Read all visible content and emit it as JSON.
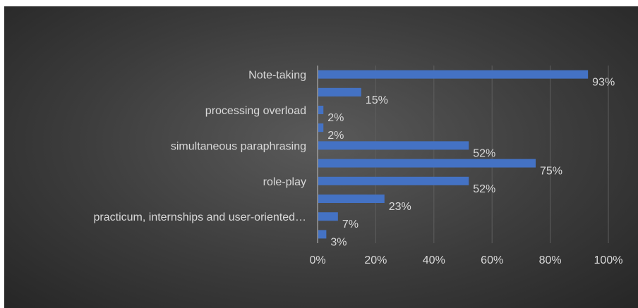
{
  "chart_data": {
    "type": "bar",
    "orientation": "horizontal",
    "title": "",
    "xlabel": "",
    "ylabel": "",
    "categories": [
      "Note-taking",
      "",
      "processing overload",
      "",
      "simultaneous paraphrasing",
      "",
      "role-play",
      "",
      "practicum, internships and user-oriented…",
      ""
    ],
    "values": [
      93,
      15,
      2,
      2,
      52,
      75,
      52,
      23,
      7,
      3
    ],
    "value_labels": [
      "93%",
      "15%",
      "2%",
      "2%",
      "52%",
      "75%",
      "52%",
      "23%",
      "7%",
      "3%"
    ],
    "xlim": [
      0,
      100
    ],
    "x_ticks": [
      0,
      20,
      40,
      60,
      80,
      100
    ],
    "x_tick_labels": [
      "0%",
      "20%",
      "40%",
      "60%",
      "80%",
      "100%"
    ],
    "grid": true,
    "bar_color": "#4472c4",
    "background": "#3a3a3a",
    "text_color": "#d9d9d9"
  }
}
